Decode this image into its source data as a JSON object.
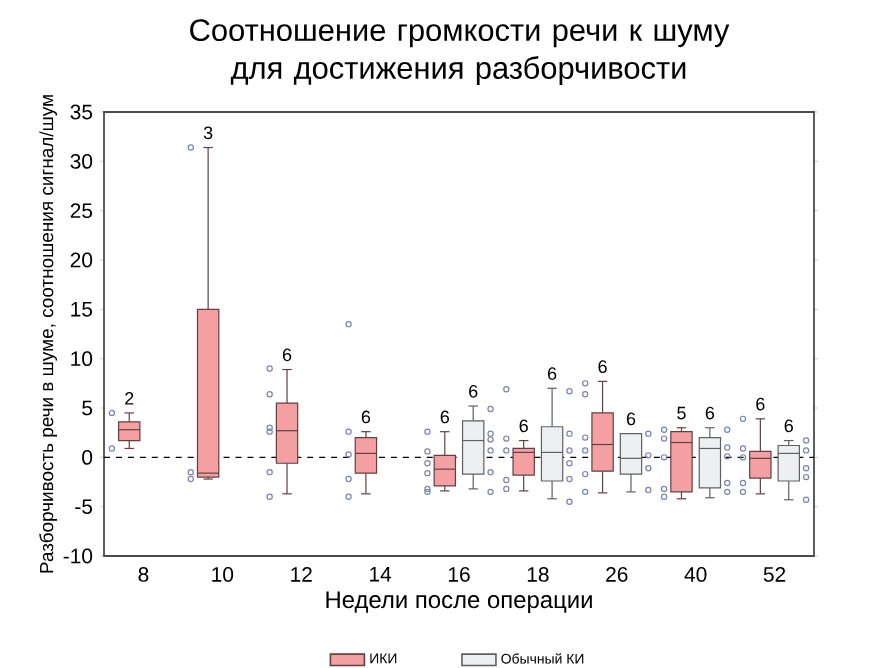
{
  "chart_data": {
    "type": "box",
    "title": "Соотношение громкости речи к шуму для достижения разборчивости",
    "xlabel": "Недели после операции",
    "ylabel": "Разборчивость речи в шуме, соотношения сигнал/шум",
    "categories": [
      "8",
      "10",
      "12",
      "14",
      "16",
      "18",
      "26",
      "40",
      "52"
    ],
    "ylim": [
      -10,
      35
    ],
    "yticks": [
      -10,
      -5,
      0,
      5,
      10,
      15,
      20,
      25,
      30,
      35
    ],
    "grid": false,
    "legend": "bottom",
    "ref_lines": [
      {
        "axis": "y",
        "value": 0,
        "line_style": "dashed",
        "color": "#000000"
      }
    ],
    "series": [
      {
        "name": "ИКИ",
        "color": "#f4a0a3",
        "boxes": [
          {
            "low": 0.9,
            "q1": 1.7,
            "median": 2.8,
            "q3": 3.6,
            "high": 4.5
          },
          {
            "low": -2.2,
            "q1": -2.0,
            "median": -1.6,
            "q3": 15,
            "high": 31.4
          },
          {
            "low": -3.7,
            "q1": -0.6,
            "median": 2.7,
            "q3": 5.5,
            "high": 8.9
          },
          {
            "low": -3.7,
            "q1": -1.6,
            "median": 0.4,
            "q3": 2.0,
            "high": 2.6
          },
          {
            "low": -3.4,
            "q1": -2.9,
            "median": -1.2,
            "q3": 0.2,
            "high": 2.6
          },
          {
            "low": -3.4,
            "q1": -1.8,
            "median": 0.5,
            "q3": 0.9,
            "high": 1.7
          },
          {
            "low": -3.6,
            "q1": -1.4,
            "median": 1.3,
            "q3": 4.5,
            "high": 7.7
          },
          {
            "low": -4.2,
            "q1": -3.5,
            "median": 1.5,
            "q3": 2.6,
            "high": 3.0
          },
          {
            "low": -3.7,
            "q1": -2.1,
            "median": -0.1,
            "q3": 0.6,
            "high": 3.9
          }
        ]
      },
      {
        "name": "Обычный КИ",
        "color": "#eeeff2",
        "boxes": [
          null,
          null,
          null,
          null,
          {
            "low": -3.2,
            "q1": -1.7,
            "median": 1.7,
            "q3": 3.7,
            "high": 5.2
          },
          {
            "low": -4.2,
            "q1": -2.4,
            "median": 0.5,
            "q3": 3.1,
            "high": 7.0
          },
          {
            "low": -3.5,
            "q1": -1.7,
            "median": -0.1,
            "q3": 2.4,
            "high": 2.4
          },
          {
            "low": -4.1,
            "q1": -3.1,
            "median": 0.9,
            "q3": 2.0,
            "high": 3.0
          },
          {
            "low": -4.3,
            "q1": -2.4,
            "median": 0.4,
            "q3": 1.2,
            "high": 1.7
          }
        ]
      },
      {
        "type": "scatter",
        "color": "#7b84ad",
        "marker": "circle",
        "x": [
          "8",
          "8",
          "10",
          "10",
          "10",
          "12",
          "12",
          "12",
          "12",
          "12",
          "12",
          "14",
          "14",
          "14",
          "14",
          "14",
          "16",
          "16",
          "16",
          "16",
          "16",
          "16",
          "18",
          "18",
          "18",
          "18",
          "18",
          "26",
          "26",
          "26",
          "26",
          "26",
          "26",
          "40",
          "40",
          "40",
          "40",
          "40",
          "52",
          "52",
          "52",
          "52",
          "52"
        ],
        "values": [
          4.5,
          0.9,
          31.4,
          -1.5,
          -2.2,
          9.0,
          6.4,
          3.0,
          2.6,
          -1.5,
          -4.0,
          13.5,
          2.6,
          0.3,
          -2.2,
          -4.0,
          2.6,
          0.6,
          -0.6,
          -1.6,
          -3.2,
          -3.5,
          6.9,
          1.9,
          0.7,
          -2.3,
          -3.2,
          7.5,
          6.4,
          2.0,
          0.7,
          -1.7,
          -3.5,
          2.8,
          1.9,
          0.0,
          -3.2,
          -4.0,
          3.9,
          0.9,
          0.0,
          -2.6,
          -3.5
        ]
      },
      {
        "type": "scatter",
        "color": "#7b84ad",
        "marker": "circle",
        "x": [
          "16",
          "16",
          "16",
          "16",
          "16",
          "16",
          "18",
          "18",
          "18",
          "18",
          "18",
          "18",
          "26",
          "26",
          "26",
          "26",
          "40",
          "40",
          "40",
          "40",
          "40",
          "52",
          "52",
          "52",
          "52",
          "52"
        ],
        "values": [
          4.9,
          2.4,
          1.8,
          0.7,
          -1.5,
          -3.5,
          6.7,
          2.4,
          0.7,
          -0.6,
          -2.2,
          -4.5,
          2.4,
          0.2,
          -1.1,
          -3.3,
          2.8,
          1.0,
          0.1,
          -2.6,
          -3.5,
          1.7,
          0.7,
          -1.1,
          -2.0,
          -4.3
        ]
      }
    ],
    "annotations": [
      {
        "text": "2",
        "x": "8",
        "y": 4.5
      },
      {
        "text": "3",
        "x": "10",
        "y": 31.4
      },
      {
        "text": "6",
        "x": "12",
        "y": 8.9
      },
      {
        "text": "6",
        "x": "14",
        "y": 2.6
      },
      {
        "text": "6",
        "x": "16",
        "y": 2.6
      },
      {
        "text": "6",
        "x": "16",
        "y": 5.2
      },
      {
        "text": "6",
        "x": "18",
        "y": 1.7
      },
      {
        "text": "6",
        "x": "18",
        "y": 7.0
      },
      {
        "text": "6",
        "x": "26",
        "y": 7.7
      },
      {
        "text": "6",
        "x": "26",
        "y": 2.4
      },
      {
        "text": "5",
        "x": "40",
        "y": 3.0
      },
      {
        "text": "6",
        "x": "40",
        "y": 3.0
      },
      {
        "text": "6",
        "x": "52",
        "y": 3.9
      },
      {
        "text": "6",
        "x": "52",
        "y": 1.7
      }
    ]
  }
}
